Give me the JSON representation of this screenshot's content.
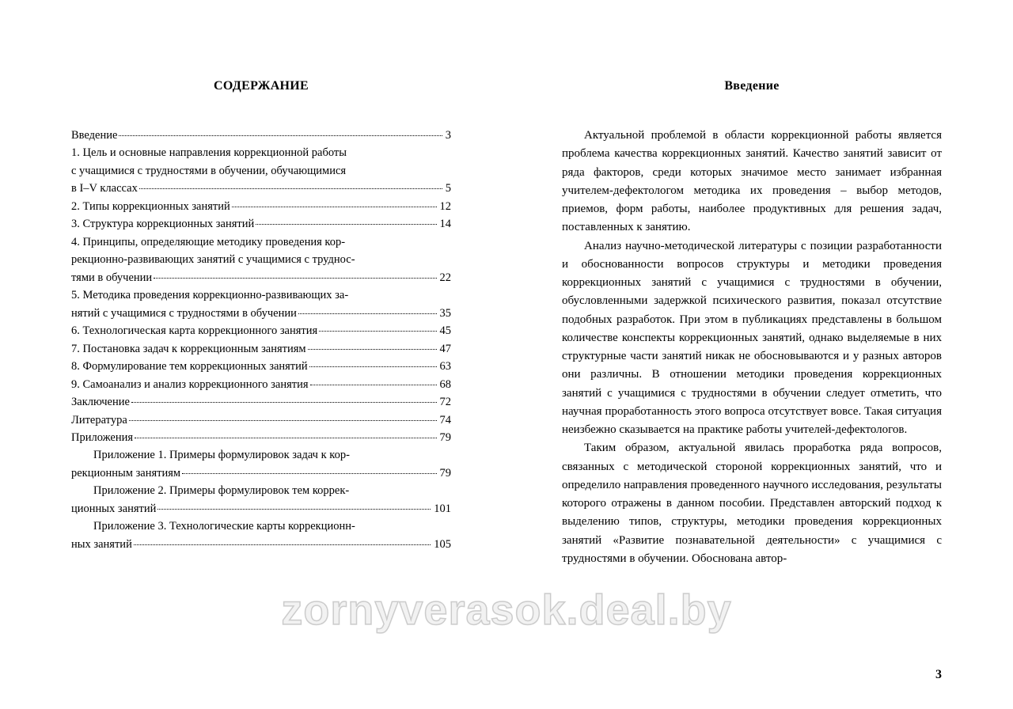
{
  "left": {
    "heading": "СОДЕРЖАНИЕ",
    "entries": [
      {
        "lines": [
          "Введение"
        ],
        "page": "3"
      },
      {
        "lines": [
          "1. Цель и основные направления коррекционной работы",
          "с учащимися с трудностями в обучении, обучающимися",
          "в I–V классах"
        ],
        "page": "5"
      },
      {
        "lines": [
          "2. Типы коррекционных занятий"
        ],
        "page": "12"
      },
      {
        "lines": [
          "3. Структура коррекционных занятий"
        ],
        "page": "14"
      },
      {
        "lines": [
          "4. Принципы, определяющие методику проведения кор-",
          "рекционно-развивающих занятий с учащимися с труднос-",
          "тями в обучении"
        ],
        "page": "22"
      },
      {
        "lines": [
          "5. Методика проведения коррекционно-развивающих за-",
          "нятий с учащимися с трудностями в обучении"
        ],
        "page": "35"
      },
      {
        "lines": [
          "6. Технологическая карта коррекционного занятия"
        ],
        "page": "45"
      },
      {
        "lines": [
          "7. Постановка задач к коррекционным занятиям"
        ],
        "page": "47"
      },
      {
        "lines": [
          "8. Формулирование тем коррекционных занятий"
        ],
        "page": "63"
      },
      {
        "lines": [
          "9. Самоанализ и анализ коррекционного занятия"
        ],
        "page": "68"
      },
      {
        "lines": [
          "Заключение"
        ],
        "page": "72"
      },
      {
        "lines": [
          "Литература"
        ],
        "page": "74"
      },
      {
        "lines": [
          "Приложения"
        ],
        "page": "79"
      },
      {
        "lines": [
          "Приложение 1. Примеры формулировок задач к кор-",
          "рекционным занятиям"
        ],
        "page": "79",
        "indent": true
      },
      {
        "lines": [
          "Приложение 2. Примеры формулировок тем коррек-",
          "ционных занятий"
        ],
        "page": "101",
        "indent": true
      },
      {
        "lines": [
          "Приложение 3. Технологические карты коррекционн-",
          "ных занятий"
        ],
        "page": "105",
        "indent": true
      }
    ]
  },
  "right": {
    "heading": "Введение",
    "paragraphs": [
      "Актуальной проблемой в области коррекционной ра­боты является проблема качества коррекционных заня­тий. Качество занятий зависит от ряда факторов, среди которых значимое место занимает избранная учителем-дефектологом методика их проведения – выбор методов, приемов, форм работы, наиболее продуктивных для реше­ния задач, поставленных к занятию.",
      "Анализ научно-методической литературы с позиции разработанности и обоснованности вопросов структуры и методики проведения коррекционных занятий с учащими­ся с трудностями в обучении, обусловленными задержкой психического развития, показал отсутствие подобных раз­работок. При этом в публикациях представлены в большом количестве конспекты коррекционных занятий, однако выделяемые в них структурные части занятий никак не обосновываются и у разных авторов они различны. В от­ношении методики проведения коррекционных занятий с учащимися с трудностями в обучении следует отметить, что научная проработанность этого вопроса отсутствует во­все. Такая ситуация неизбежно сказывается на практике работы учителей-дефектологов.",
      "Таким образом, актуальной явилась проработка ряда вопросов, связанных с методической стороной коррекцион­ных занятий, что и определило направления проведенного научного исследования, результаты которого отражены в данном пособии. Представлен авторский подход к выделе­нию типов, структуры, методики проведения коррекцион­ных занятий «Развитие познавательной деятельности» с учащимися с трудностями в обучении. Обоснована автор-"
    ],
    "pagenum": "3"
  },
  "watermark": "zornyverasok.deal.by"
}
